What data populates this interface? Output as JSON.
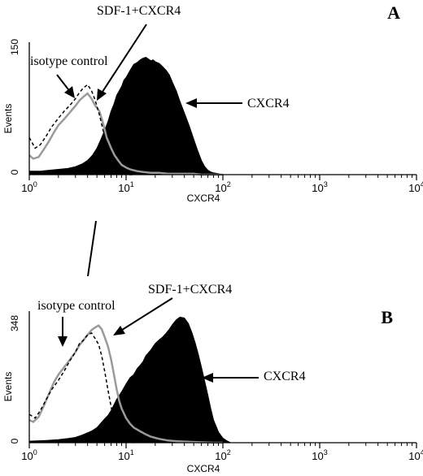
{
  "chart_data": [
    {
      "type": "area",
      "panel_label": "A",
      "xlabel": "CXCR4",
      "ylabel": "Events",
      "xscale": "log",
      "xlim": [
        1,
        10000
      ],
      "ylim": [
        0,
        150
      ],
      "y_max_label": "150",
      "y_min_label": "0",
      "x_tick_labels": [
        {
          "base": "10",
          "exp": "0",
          "value": 1
        },
        {
          "base": "10",
          "exp": "1",
          "value": 10
        },
        {
          "base": "10",
          "exp": "2",
          "value": 100
        },
        {
          "base": "10",
          "exp": "3",
          "value": 1000
        },
        {
          "base": "10",
          "exp": "4",
          "value": 10000
        }
      ],
      "series": [
        {
          "name": "CXCR4",
          "style": "filled",
          "color": "#000000",
          "x": [
            1.0,
            1.3,
            1.6,
            2.0,
            2.5,
            3.0,
            3.5,
            4.0,
            4.5,
            5.0,
            5.5,
            6.0,
            6.5,
            7.0,
            7.5,
            8.0,
            8.5,
            9.0,
            9.5,
            10,
            11,
            12,
            13,
            14,
            15,
            16,
            17,
            18,
            19,
            20,
            22,
            24,
            26,
            28,
            30,
            33,
            36,
            40,
            45,
            50,
            55,
            60,
            65,
            70,
            75,
            80,
            90,
            100
          ],
          "y": [
            4,
            4,
            5,
            6,
            7,
            9,
            12,
            16,
            22,
            30,
            40,
            50,
            60,
            72,
            80,
            90,
            95,
            100,
            107,
            110,
            118,
            125,
            127,
            130,
            132,
            133,
            131,
            129,
            130,
            128,
            126,
            122,
            118,
            113,
            105,
            95,
            83,
            70,
            55,
            40,
            27,
            16,
            9,
            5,
            3,
            2,
            1,
            0
          ]
        },
        {
          "name": "SDF-1+CXCR4",
          "style": "gray-line",
          "color": "#9a9a9a",
          "x": [
            1.0,
            1.1,
            1.25,
            1.4,
            1.6,
            1.8,
            2.0,
            2.3,
            2.6,
            3.0,
            3.3,
            3.6,
            4.0,
            4.4,
            4.8,
            5.3,
            5.8,
            6.3,
            7.0,
            7.6,
            8.3,
            9.0,
            10,
            11,
            13,
            15,
            18,
            22,
            27,
            33,
            40,
            50,
            60,
            70,
            80,
            100
          ],
          "y": [
            22,
            18,
            20,
            28,
            38,
            48,
            56,
            63,
            70,
            78,
            84,
            88,
            92,
            86,
            78,
            72,
            58,
            42,
            30,
            22,
            16,
            11,
            8,
            6,
            4,
            3,
            2,
            2,
            1,
            1,
            1,
            1,
            0,
            0,
            0,
            0
          ]
        },
        {
          "name": "isotype control",
          "style": "dashed",
          "color": "#000000",
          "x": [
            1.0,
            1.15,
            1.3,
            1.5,
            1.7,
            2.0,
            2.3,
            2.6,
            3.0,
            3.3,
            3.6,
            4.0,
            4.4,
            4.8,
            5.3,
            5.8,
            6.5,
            7.0,
            7.5,
            8.0,
            8.5,
            9.0,
            10,
            11,
            12
          ],
          "y": [
            42,
            30,
            34,
            44,
            54,
            64,
            72,
            78,
            86,
            93,
            98,
            102,
            95,
            84,
            68,
            50,
            30,
            18,
            10,
            6,
            3,
            2,
            1,
            0,
            0
          ]
        }
      ],
      "annotations": [
        "isotype control",
        "SDF-1+CXCR4",
        "CXCR4"
      ]
    },
    {
      "type": "area",
      "panel_label": "B",
      "xlabel": "CXCR4",
      "ylabel": "Events",
      "xscale": "log",
      "xlim": [
        1,
        10000
      ],
      "ylim": [
        0,
        348
      ],
      "y_max_label": "348",
      "y_min_label": "0",
      "x_tick_labels": [
        {
          "base": "10",
          "exp": "0",
          "value": 1
        },
        {
          "base": "10",
          "exp": "1",
          "value": 10
        },
        {
          "base": "10",
          "exp": "2",
          "value": 100
        },
        {
          "base": "10",
          "exp": "3",
          "value": 1000
        },
        {
          "base": "10",
          "exp": "4",
          "value": 10000
        }
      ],
      "series": [
        {
          "name": "CXCR4",
          "style": "filled",
          "color": "#000000",
          "x": [
            1.0,
            1.5,
            2.0,
            2.5,
            3.0,
            3.5,
            4.0,
            4.5,
            5.0,
            5.5,
            6.0,
            6.5,
            7.0,
            7.5,
            8.0,
            8.5,
            9.0,
            9.5,
            10,
            11,
            12,
            13,
            14,
            15,
            16,
            18,
            20,
            22,
            24,
            26,
            28,
            30,
            33,
            36,
            40,
            44,
            48,
            52,
            56,
            60,
            65,
            70,
            75,
            80,
            90,
            100,
            110,
            120
          ],
          "y": [
            4,
            6,
            8,
            11,
            14,
            20,
            26,
            32,
            40,
            52,
            63,
            72,
            85,
            100,
            115,
            125,
            135,
            145,
            155,
            172,
            180,
            196,
            205,
            215,
            230,
            245,
            262,
            272,
            280,
            290,
            300,
            312,
            325,
            332,
            330,
            315,
            290,
            262,
            232,
            200,
            162,
            125,
            90,
            60,
            28,
            12,
            5,
            0
          ]
        },
        {
          "name": "SDF-1+CXCR4",
          "style": "gray-line",
          "color": "#9a9a9a",
          "x": [
            1.0,
            1.1,
            1.25,
            1.4,
            1.6,
            1.8,
            2.0,
            2.3,
            2.6,
            3.0,
            3.3,
            3.6,
            4.0,
            4.4,
            4.8,
            5.2,
            5.6,
            6.0,
            6.5,
            7.0,
            7.5,
            8.0,
            8.5,
            9.0,
            10,
            11,
            12,
            14,
            16,
            18,
            22,
            27,
            33,
            40,
            50,
            60,
            80,
            100
          ],
          "y": [
            60,
            55,
            68,
            95,
            130,
            160,
            180,
            200,
            218,
            240,
            258,
            270,
            285,
            298,
            305,
            310,
            300,
            280,
            255,
            220,
            180,
            140,
            110,
            90,
            65,
            50,
            40,
            30,
            22,
            16,
            10,
            6,
            4,
            3,
            2,
            1,
            0,
            0
          ]
        },
        {
          "name": "isotype control",
          "style": "dashed",
          "color": "#000000",
          "x": [
            1.0,
            1.15,
            1.3,
            1.5,
            1.7,
            2.0,
            2.3,
            2.6,
            3.0,
            3.3,
            3.6,
            4.0,
            4.4,
            4.8,
            5.2,
            5.6,
            6.0,
            6.5,
            7.0,
            7.5,
            8.0,
            8.5,
            9.0,
            10,
            11,
            12
          ],
          "y": [
            75,
            65,
            85,
            115,
            140,
            165,
            190,
            215,
            240,
            262,
            270,
            285,
            290,
            275,
            260,
            230,
            190,
            140,
            95,
            60,
            35,
            18,
            10,
            4,
            1,
            0
          ]
        }
      ],
      "annotations": [
        "isotype control",
        "SDF-1+CXCR4",
        "CXCR4"
      ]
    }
  ]
}
